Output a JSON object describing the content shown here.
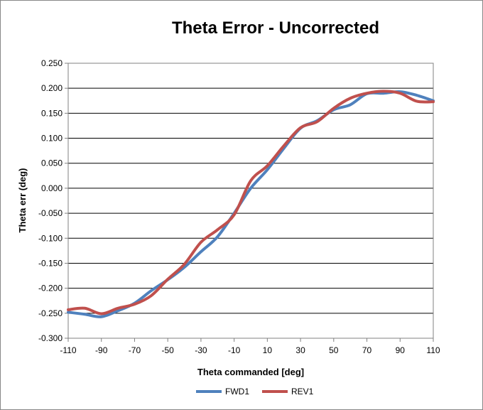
{
  "chart_data": {
    "type": "line",
    "title": "Theta Error - Uncorrected",
    "xlabel": "Theta commanded [deg]",
    "ylabel": "Theta err (deg)",
    "xlim": [
      -110,
      110
    ],
    "ylim": [
      -0.3,
      0.25
    ],
    "x_ticks": [
      "-110",
      "-90",
      "-70",
      "-50",
      "-30",
      "-10",
      "10",
      "30",
      "50",
      "70",
      "90",
      "110"
    ],
    "y_ticks": [
      "0.250",
      "0.200",
      "0.150",
      "0.100",
      "0.050",
      "0.000",
      "-0.050",
      "-0.100",
      "-0.150",
      "-0.200",
      "-0.250",
      "-0.300"
    ],
    "grid": "horizontal",
    "legend_position": "bottom",
    "series": [
      {
        "name": "FWD1",
        "color": "#4F81BD",
        "x": [
          -110,
          -100,
          -90,
          -80,
          -70,
          -60,
          -50,
          -40,
          -30,
          -20,
          -10,
          0,
          10,
          20,
          30,
          40,
          50,
          60,
          70,
          80,
          90,
          100,
          110
        ],
        "y": [
          -0.248,
          -0.252,
          -0.257,
          -0.245,
          -0.23,
          -0.205,
          -0.183,
          -0.158,
          -0.127,
          -0.097,
          -0.05,
          0.0,
          0.037,
          0.08,
          0.12,
          0.135,
          0.157,
          0.167,
          0.189,
          0.19,
          0.193,
          0.186,
          0.175
        ]
      },
      {
        "name": "REV1",
        "color": "#C0504D",
        "x": [
          -110,
          -100,
          -90,
          -80,
          -70,
          -60,
          -50,
          -40,
          -30,
          -20,
          -10,
          0,
          10,
          20,
          30,
          40,
          50,
          60,
          70,
          80,
          90,
          100,
          110
        ],
        "y": [
          -0.243,
          -0.24,
          -0.251,
          -0.24,
          -0.232,
          -0.215,
          -0.182,
          -0.152,
          -0.108,
          -0.083,
          -0.053,
          0.015,
          0.045,
          0.085,
          0.121,
          0.133,
          0.16,
          0.18,
          0.19,
          0.194,
          0.19,
          0.174,
          0.173
        ]
      }
    ]
  }
}
